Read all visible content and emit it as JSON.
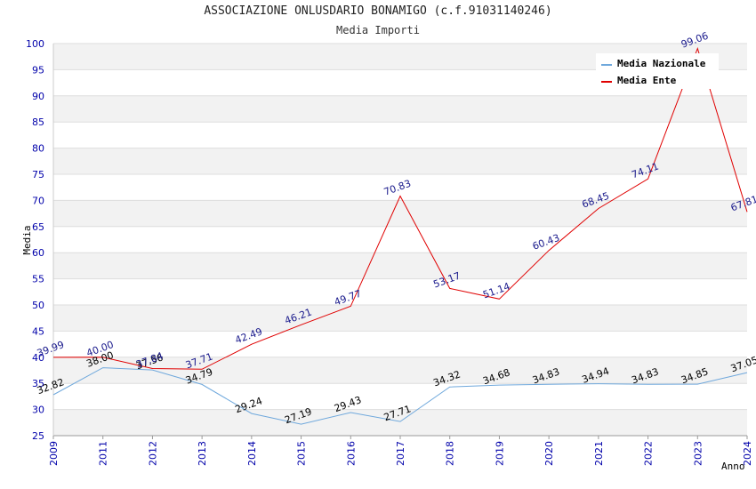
{
  "title": "ASSOCIAZIONE ONLUSDARIO BONAMIGO (c.f.91031140246)",
  "subtitle": "Media Importi",
  "chart_data": {
    "type": "line",
    "ylabel": "Media",
    "xlabel": "Anno",
    "ylim": [
      25,
      100
    ],
    "yticks": [
      25,
      30,
      35,
      40,
      45,
      50,
      55,
      60,
      65,
      70,
      75,
      80,
      85,
      90,
      95,
      100
    ],
    "categories": [
      "2009",
      "2011",
      "2012",
      "2013",
      "2014",
      "2015",
      "2016",
      "2017",
      "2018",
      "2019",
      "2020",
      "2021",
      "2022",
      "2023",
      "2024"
    ],
    "series": [
      {
        "name": "Media Nazionale",
        "color": "#6fa8dc",
        "label_color": "#000000",
        "values": [
          32.82,
          38.0,
          37.56,
          34.79,
          29.24,
          27.19,
          29.43,
          27.71,
          34.32,
          34.68,
          34.83,
          34.94,
          34.83,
          34.85,
          37.05
        ],
        "labels": [
          "32.82",
          "38.00",
          "37.56",
          "34.79",
          "29.24",
          "27.19",
          "29.43",
          "27.71",
          "34.32",
          "34.68",
          "34.83",
          "34.94",
          "34.83",
          "34.85",
          "37.05"
        ]
      },
      {
        "name": "Media Ente",
        "color": "#e00000",
        "label_color": "#1a1a8c",
        "values": [
          39.99,
          40.0,
          37.84,
          37.71,
          42.49,
          46.21,
          49.77,
          70.83,
          53.17,
          51.14,
          60.43,
          68.45,
          74.11,
          99.06,
          67.81
        ],
        "labels": [
          "39.99",
          "40.00",
          "37.84",
          "37.71",
          "42.49",
          "46.21",
          "49.77",
          "70.83",
          "53.17",
          "51.14",
          "60.43",
          "68.45",
          "74.11",
          "99.06",
          "67.81"
        ]
      }
    ],
    "grid": true,
    "legend_position": "top-right"
  }
}
